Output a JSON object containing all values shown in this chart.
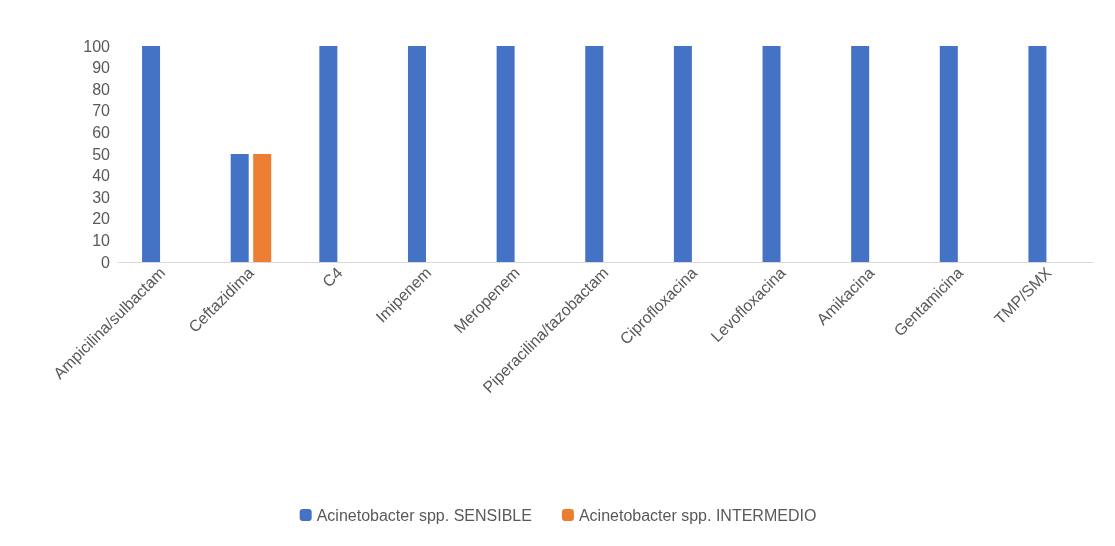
{
  "chart_data": {
    "type": "bar",
    "categories": [
      "Ampicilina/sulbactam",
      "Ceftazidima",
      "C4",
      "Imipenem",
      "Meropenem",
      "Piperacilina/tazobactam",
      "Ciprofloxacina",
      "Levofloxacina",
      "Amikacina",
      "Gentamicina",
      "TMP/SMX"
    ],
    "series": [
      {
        "name": "Acinetobacter spp. SENSIBLE",
        "color": "#4472c4",
        "values": [
          100,
          50,
          100,
          100,
          100,
          100,
          100,
          100,
          100,
          100,
          100
        ]
      },
      {
        "name": "Acinetobacter spp. INTERMEDIO",
        "color": "#ed7d31",
        "values": [
          0,
          50,
          0,
          0,
          0,
          0,
          0,
          0,
          0,
          0,
          0
        ]
      }
    ],
    "ylim": [
      0,
      100
    ],
    "yticks": [
      0,
      10,
      20,
      30,
      40,
      50,
      60,
      70,
      80,
      90,
      100
    ],
    "grid": false,
    "legend": "bottom"
  }
}
